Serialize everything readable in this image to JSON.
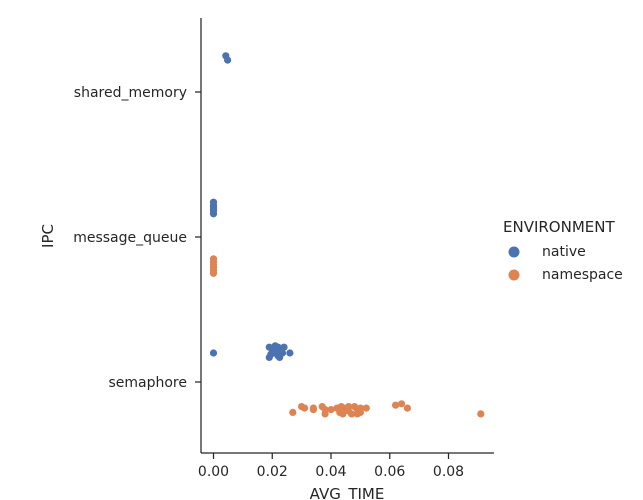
{
  "chart_data": {
    "type": "scatter",
    "xlabel": "AVG_TIME",
    "ylabel": "IPC",
    "xlim": [
      -0.004,
      0.096
    ],
    "x_ticks": [
      "0.00",
      "0.02",
      "0.04",
      "0.06",
      "0.08"
    ],
    "x_tick_values": [
      0.0,
      0.02,
      0.04,
      0.06,
      0.08
    ],
    "categories": [
      "shared_memory",
      "message_queue",
      "semaphore"
    ],
    "grid": false,
    "legend": {
      "title": "ENVIRONMENT",
      "position": "right"
    },
    "series": [
      {
        "name": "native",
        "color": "#4c72b0",
        "points": [
          {
            "cat": "shared_memory",
            "x": 0.0042,
            "jitter": 0.25
          },
          {
            "cat": "shared_memory",
            "x": 0.0048,
            "jitter": 0.22
          },
          {
            "cat": "message_queue",
            "x": 0.0,
            "jitter": 0.24
          },
          {
            "cat": "message_queue",
            "x": 0.0,
            "jitter": 0.22
          },
          {
            "cat": "message_queue",
            "x": 0.0,
            "jitter": 0.2
          },
          {
            "cat": "message_queue",
            "x": 0.0,
            "jitter": 0.18
          },
          {
            "cat": "message_queue",
            "x": 0.0,
            "jitter": 0.16
          },
          {
            "cat": "message_queue",
            "x": 0.0,
            "jitter": 0.19
          },
          {
            "cat": "message_queue",
            "x": 0.0,
            "jitter": 0.21
          },
          {
            "cat": "semaphore",
            "x": 0.0,
            "jitter": 0.2
          },
          {
            "cat": "semaphore",
            "x": 0.019,
            "jitter": 0.24
          },
          {
            "cat": "semaphore",
            "x": 0.02,
            "jitter": 0.22
          },
          {
            "cat": "semaphore",
            "x": 0.021,
            "jitter": 0.2
          },
          {
            "cat": "semaphore",
            "x": 0.022,
            "jitter": 0.18
          },
          {
            "cat": "semaphore",
            "x": 0.019,
            "jitter": 0.17
          },
          {
            "cat": "semaphore",
            "x": 0.02,
            "jitter": 0.23
          },
          {
            "cat": "semaphore",
            "x": 0.021,
            "jitter": 0.25
          },
          {
            "cat": "semaphore",
            "x": 0.022,
            "jitter": 0.24
          },
          {
            "cat": "semaphore",
            "x": 0.0235,
            "jitter": 0.2
          },
          {
            "cat": "semaphore",
            "x": 0.024,
            "jitter": 0.24
          },
          {
            "cat": "semaphore",
            "x": 0.0195,
            "jitter": 0.19
          },
          {
            "cat": "semaphore",
            "x": 0.0205,
            "jitter": 0.21
          },
          {
            "cat": "semaphore",
            "x": 0.0225,
            "jitter": 0.17
          },
          {
            "cat": "semaphore",
            "x": 0.023,
            "jitter": 0.22
          },
          {
            "cat": "semaphore",
            "x": 0.026,
            "jitter": 0.2
          }
        ]
      },
      {
        "name": "namespace",
        "color": "#dd8452",
        "points": [
          {
            "cat": "message_queue",
            "x": 0.0,
            "jitter": -0.15
          },
          {
            "cat": "message_queue",
            "x": 0.0,
            "jitter": -0.17
          },
          {
            "cat": "message_queue",
            "x": 0.0,
            "jitter": -0.19
          },
          {
            "cat": "message_queue",
            "x": 0.0,
            "jitter": -0.21
          },
          {
            "cat": "message_queue",
            "x": 0.0,
            "jitter": -0.23
          },
          {
            "cat": "message_queue",
            "x": 0.0,
            "jitter": -0.25
          },
          {
            "cat": "semaphore",
            "x": 0.027,
            "jitter": -0.21
          },
          {
            "cat": "semaphore",
            "x": 0.03,
            "jitter": -0.17
          },
          {
            "cat": "semaphore",
            "x": 0.031,
            "jitter": -0.18
          },
          {
            "cat": "semaphore",
            "x": 0.034,
            "jitter": -0.18
          },
          {
            "cat": "semaphore",
            "x": 0.034,
            "jitter": -0.19
          },
          {
            "cat": "semaphore",
            "x": 0.037,
            "jitter": -0.17
          },
          {
            "cat": "semaphore",
            "x": 0.038,
            "jitter": -0.19
          },
          {
            "cat": "semaphore",
            "x": 0.038,
            "jitter": -0.22
          },
          {
            "cat": "semaphore",
            "x": 0.04,
            "jitter": -0.19
          },
          {
            "cat": "semaphore",
            "x": 0.042,
            "jitter": -0.18
          },
          {
            "cat": "semaphore",
            "x": 0.043,
            "jitter": -0.21
          },
          {
            "cat": "semaphore",
            "x": 0.0435,
            "jitter": -0.17
          },
          {
            "cat": "semaphore",
            "x": 0.044,
            "jitter": -0.22
          },
          {
            "cat": "semaphore",
            "x": 0.045,
            "jitter": -0.18
          },
          {
            "cat": "semaphore",
            "x": 0.046,
            "jitter": -0.17
          },
          {
            "cat": "semaphore",
            "x": 0.046,
            "jitter": -0.2
          },
          {
            "cat": "semaphore",
            "x": 0.047,
            "jitter": -0.22
          },
          {
            "cat": "semaphore",
            "x": 0.048,
            "jitter": -0.17
          },
          {
            "cat": "semaphore",
            "x": 0.049,
            "jitter": -0.19
          },
          {
            "cat": "semaphore",
            "x": 0.049,
            "jitter": -0.22
          },
          {
            "cat": "semaphore",
            "x": 0.05,
            "jitter": -0.18
          },
          {
            "cat": "semaphore",
            "x": 0.05,
            "jitter": -0.21
          },
          {
            "cat": "semaphore",
            "x": 0.052,
            "jitter": -0.18
          },
          {
            "cat": "semaphore",
            "x": 0.062,
            "jitter": -0.16
          },
          {
            "cat": "semaphore",
            "x": 0.064,
            "jitter": -0.15
          },
          {
            "cat": "semaphore",
            "x": 0.066,
            "jitter": -0.18
          },
          {
            "cat": "semaphore",
            "x": 0.091,
            "jitter": -0.22
          }
        ]
      }
    ]
  }
}
